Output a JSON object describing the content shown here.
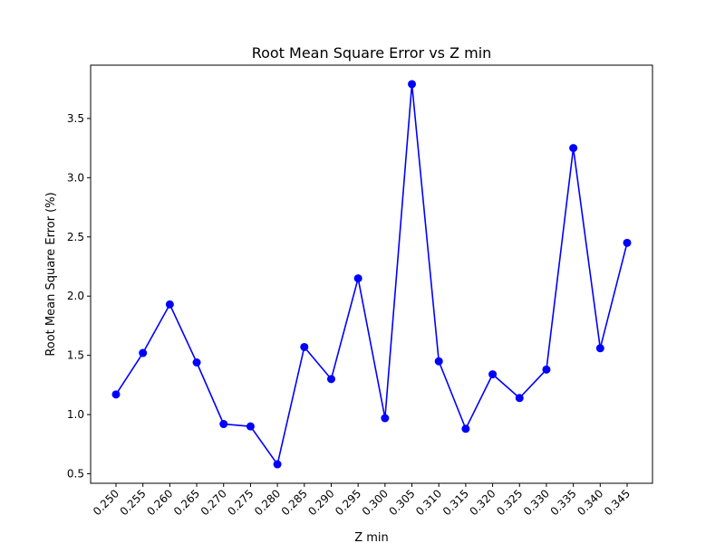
{
  "chart_data": {
    "type": "line",
    "title": "Root Mean Square Error vs Z min",
    "xlabel": "Z min",
    "ylabel": "Root Mean Square Error (%)",
    "categories": [
      "0.250",
      "0.255",
      "0.260",
      "0.265",
      "0.270",
      "0.275",
      "0.280",
      "0.285",
      "0.290",
      "0.295",
      "0.300",
      "0.305",
      "0.310",
      "0.315",
      "0.320",
      "0.325",
      "0.330",
      "0.335",
      "0.340",
      "0.345"
    ],
    "series": [
      {
        "values": [
          1.17,
          1.52,
          1.93,
          1.44,
          0.92,
          0.9,
          0.58,
          1.57,
          1.3,
          2.15,
          0.97,
          3.79,
          1.45,
          0.88,
          1.34,
          1.14,
          1.38,
          3.25,
          1.56,
          2.45
        ],
        "color": "#0000ff",
        "marker": "circle"
      }
    ],
    "yticks": [
      0.5,
      1.0,
      1.5,
      2.0,
      2.5,
      3.0,
      3.5
    ],
    "ytick_labels": [
      "0.5",
      "1.0",
      "1.5",
      "2.0",
      "2.5",
      "3.0",
      "3.5"
    ],
    "ylim": [
      0.42,
      3.95
    ],
    "grid": false,
    "legend": "none"
  }
}
